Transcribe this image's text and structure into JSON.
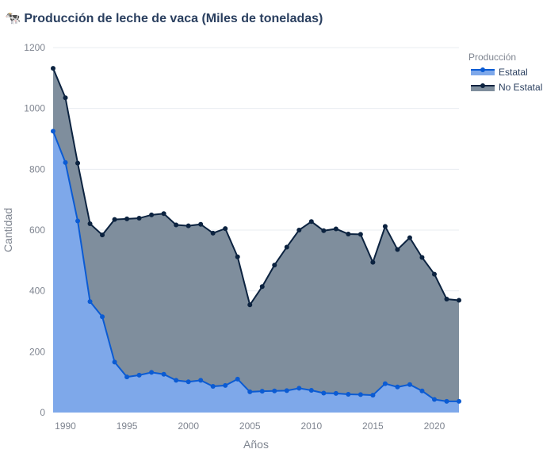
{
  "title": "🐄 Producción de leche de vaca (Miles de toneladas)",
  "colors": {
    "estatal_line": "#0b5bd3",
    "estatal_fill": "#7ea8ea",
    "noestatal_line": "#0c2340",
    "noestatal_fill": "#7f8e9d",
    "grid": "#e8ecf1",
    "tick_text": "#7f8590",
    "title_text": "#2a3f5f"
  },
  "chart_data": {
    "type": "area",
    "title": "🐄 Producción de leche de vaca (Miles de toneladas)",
    "xlabel": "Años",
    "ylabel": "Cantidad",
    "xlim": [
      1989,
      2022
    ],
    "ylim": [
      0,
      1200
    ],
    "xticks": [
      1990,
      1995,
      2000,
      2005,
      2010,
      2015,
      2020
    ],
    "yticks": [
      0,
      200,
      400,
      600,
      800,
      1000,
      1200
    ],
    "grid": true,
    "stacked": true,
    "legend": {
      "title": "Producción",
      "position": "top-right"
    },
    "x": [
      1989,
      1990,
      1991,
      1992,
      1993,
      1994,
      1995,
      1996,
      1997,
      1998,
      1999,
      2000,
      2001,
      2002,
      2003,
      2004,
      2005,
      2006,
      2007,
      2008,
      2009,
      2010,
      2011,
      2012,
      2013,
      2014,
      2015,
      2016,
      2017,
      2018,
      2019,
      2020,
      2021,
      2022
    ],
    "series": [
      {
        "name": "Estatal",
        "values": [
          925,
          822,
          630,
          365,
          315,
          166,
          117,
          123,
          132,
          126,
          106,
          101,
          106,
          86,
          89,
          110,
          68,
          70,
          71,
          72,
          80,
          73,
          64,
          63,
          60,
          59,
          57,
          95,
          84,
          92,
          71,
          43,
          37,
          37
        ]
      },
      {
        "name": "No Estatal",
        "values": [
          207,
          213,
          190,
          256,
          269,
          469,
          520,
          516,
          518,
          528,
          511,
          513,
          513,
          504,
          516,
          402,
          286,
          344,
          414,
          472,
          520,
          555,
          534,
          541,
          527,
          527,
          437,
          517,
          452,
          483,
          439,
          412,
          336,
          332
        ]
      }
    ]
  }
}
